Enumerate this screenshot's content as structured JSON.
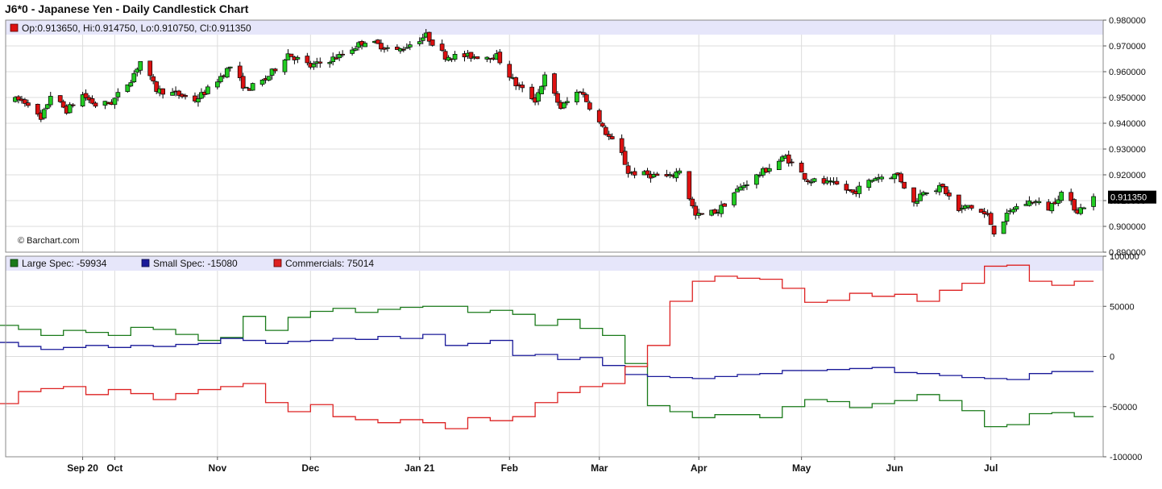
{
  "title": "J6*0 - Japanese Yen - Daily Candlestick Chart",
  "ohlc_legend": {
    "label": "Op:0.913650, Hi:0.914750, Lo:0.910750, Cl:0.911350",
    "color": "#dd1111"
  },
  "credit": "© Barchart.com",
  "last_price_label": "0.911350",
  "colors": {
    "up": "#22cc22",
    "down": "#dd1111",
    "legend_band": "#e6e6fa",
    "large_spec": "#1a7a1a",
    "small_spec": "#1a1a99",
    "commercials": "#dd2222"
  },
  "chart_data": [
    {
      "type": "candlestick",
      "title": "J6*0 - Japanese Yen - Daily Candlestick Chart",
      "ylim": [
        0.89,
        0.98
      ],
      "y_ticks": [
        "0.980000",
        "0.970000",
        "0.960000",
        "0.950000",
        "0.940000",
        "0.930000",
        "0.920000",
        "0.910000",
        "0.900000",
        "0.890000"
      ],
      "x_ticks": [
        "Sep 20",
        "Oct",
        "Nov",
        "Dec",
        "Jan 21",
        "Feb",
        "Mar",
        "Apr",
        "May",
        "Jun",
        "Jul"
      ],
      "control_points": [
        {
          "d": "2020-09-01",
          "p": 0.949
        },
        {
          "d": "2020-09-04",
          "p": 0.948
        },
        {
          "d": "2020-09-08",
          "p": 0.941
        },
        {
          "d": "2020-09-11",
          "p": 0.951
        },
        {
          "d": "2020-09-16",
          "p": 0.945
        },
        {
          "d": "2020-09-21",
          "p": 0.951
        },
        {
          "d": "2020-09-25",
          "p": 0.947
        },
        {
          "d": "2020-09-30",
          "p": 0.948
        },
        {
          "d": "2020-10-06",
          "p": 0.957
        },
        {
          "d": "2020-10-09",
          "p": 0.964
        },
        {
          "d": "2020-10-14",
          "p": 0.953
        },
        {
          "d": "2020-10-21",
          "p": 0.951
        },
        {
          "d": "2020-10-26",
          "p": 0.949
        },
        {
          "d": "2020-10-30",
          "p": 0.953
        },
        {
          "d": "2020-11-06",
          "p": 0.962
        },
        {
          "d": "2020-11-11",
          "p": 0.953
        },
        {
          "d": "2020-11-17",
          "p": 0.957
        },
        {
          "d": "2020-11-24",
          "p": 0.967
        },
        {
          "d": "2020-12-01",
          "p": 0.962
        },
        {
          "d": "2020-12-10",
          "p": 0.966
        },
        {
          "d": "2020-12-18",
          "p": 0.972
        },
        {
          "d": "2020-12-28",
          "p": 0.968
        },
        {
          "d": "2021-01-06",
          "p": 0.974
        },
        {
          "d": "2021-01-12",
          "p": 0.966
        },
        {
          "d": "2021-01-20",
          "p": 0.966
        },
        {
          "d": "2021-01-28",
          "p": 0.966
        },
        {
          "d": "2021-02-03",
          "p": 0.955
        },
        {
          "d": "2021-02-09",
          "p": 0.949
        },
        {
          "d": "2021-02-12",
          "p": 0.958
        },
        {
          "d": "2021-02-17",
          "p": 0.946
        },
        {
          "d": "2021-02-23",
          "p": 0.953
        },
        {
          "d": "2021-03-02",
          "p": 0.938
        },
        {
          "d": "2021-03-08",
          "p": 0.928
        },
        {
          "d": "2021-03-10",
          "p": 0.921
        },
        {
          "d": "2021-03-16",
          "p": 0.92
        },
        {
          "d": "2021-03-23",
          "p": 0.919
        },
        {
          "d": "2021-03-26",
          "p": 0.922
        },
        {
          "d": "2021-03-31",
          "p": 0.904
        },
        {
          "d": "2021-04-07",
          "p": 0.906
        },
        {
          "d": "2021-04-12",
          "p": 0.913
        },
        {
          "d": "2021-04-16",
          "p": 0.917
        },
        {
          "d": "2021-04-22",
          "p": 0.922
        },
        {
          "d": "2021-04-28",
          "p": 0.927
        },
        {
          "d": "2021-05-05",
          "p": 0.918
        },
        {
          "d": "2021-05-10",
          "p": 0.917
        },
        {
          "d": "2021-05-14",
          "p": 0.916
        },
        {
          "d": "2021-05-19",
          "p": 0.913
        },
        {
          "d": "2021-05-26",
          "p": 0.919
        },
        {
          "d": "2021-06-02",
          "p": 0.92
        },
        {
          "d": "2021-06-07",
          "p": 0.909
        },
        {
          "d": "2021-06-10",
          "p": 0.914
        },
        {
          "d": "2021-06-16",
          "p": 0.915
        },
        {
          "d": "2021-06-21",
          "p": 0.906
        },
        {
          "d": "2021-06-24",
          "p": 0.908
        },
        {
          "d": "2021-06-30",
          "p": 0.904
        },
        {
          "d": "2021-07-02",
          "p": 0.898
        },
        {
          "d": "2021-07-08",
          "p": 0.907
        },
        {
          "d": "2021-07-14",
          "p": 0.91
        },
        {
          "d": "2021-07-19",
          "p": 0.907
        },
        {
          "d": "2021-07-23",
          "p": 0.913
        },
        {
          "d": "2021-07-28",
          "p": 0.906
        },
        {
          "d": "2021-08-02",
          "p": 0.911
        }
      ]
    },
    {
      "type": "line",
      "step": true,
      "ylim": [
        -100000,
        100000
      ],
      "y_ticks": [
        "100000",
        "50000",
        "0",
        "-50000",
        "-100000"
      ],
      "series": [
        {
          "name": "Large Spec",
          "legend": "Large Spec: -59934",
          "values": [
            {
              "d": "2020-08-25",
              "v": 31000
            },
            {
              "d": "2020-09-01",
              "v": 27000
            },
            {
              "d": "2020-09-08",
              "v": 21000
            },
            {
              "d": "2020-09-15",
              "v": 26000
            },
            {
              "d": "2020-09-22",
              "v": 24000
            },
            {
              "d": "2020-09-29",
              "v": 21000
            },
            {
              "d": "2020-10-06",
              "v": 29000
            },
            {
              "d": "2020-10-13",
              "v": 27000
            },
            {
              "d": "2020-10-20",
              "v": 22000
            },
            {
              "d": "2020-10-27",
              "v": 16000
            },
            {
              "d": "2020-11-03",
              "v": 19000
            },
            {
              "d": "2020-11-10",
              "v": 40000
            },
            {
              "d": "2020-11-17",
              "v": 26000
            },
            {
              "d": "2020-11-24",
              "v": 39000
            },
            {
              "d": "2020-12-01",
              "v": 45000
            },
            {
              "d": "2020-12-08",
              "v": 48000
            },
            {
              "d": "2020-12-15",
              "v": 44000
            },
            {
              "d": "2020-12-22",
              "v": 47000
            },
            {
              "d": "2020-12-29",
              "v": 49000
            },
            {
              "d": "2021-01-05",
              "v": 50000
            },
            {
              "d": "2021-01-12",
              "v": 50000
            },
            {
              "d": "2021-01-19",
              "v": 44000
            },
            {
              "d": "2021-01-26",
              "v": 46000
            },
            {
              "d": "2021-02-02",
              "v": 42000
            },
            {
              "d": "2021-02-09",
              "v": 31000
            },
            {
              "d": "2021-02-16",
              "v": 37000
            },
            {
              "d": "2021-02-23",
              "v": 28000
            },
            {
              "d": "2021-03-02",
              "v": 21000
            },
            {
              "d": "2021-03-09",
              "v": -7000
            },
            {
              "d": "2021-03-16",
              "v": -49000
            },
            {
              "d": "2021-03-23",
              "v": -55000
            },
            {
              "d": "2021-03-30",
              "v": -61000
            },
            {
              "d": "2021-04-06",
              "v": -58000
            },
            {
              "d": "2021-04-13",
              "v": -58000
            },
            {
              "d": "2021-04-20",
              "v": -61000
            },
            {
              "d": "2021-04-27",
              "v": -50000
            },
            {
              "d": "2021-05-04",
              "v": -43000
            },
            {
              "d": "2021-05-11",
              "v": -45000
            },
            {
              "d": "2021-05-18",
              "v": -51000
            },
            {
              "d": "2021-05-25",
              "v": -47000
            },
            {
              "d": "2021-06-01",
              "v": -44000
            },
            {
              "d": "2021-06-08",
              "v": -38000
            },
            {
              "d": "2021-06-15",
              "v": -44000
            },
            {
              "d": "2021-06-22",
              "v": -54000
            },
            {
              "d": "2021-06-29",
              "v": -70000
            },
            {
              "d": "2021-07-06",
              "v": -68000
            },
            {
              "d": "2021-07-13",
              "v": -57000
            },
            {
              "d": "2021-07-20",
              "v": -56000
            },
            {
              "d": "2021-07-27",
              "v": -60000
            }
          ]
        },
        {
          "name": "Small Spec",
          "legend": "Small Spec: -15080",
          "values": [
            {
              "d": "2020-08-25",
              "v": 14000
            },
            {
              "d": "2020-09-01",
              "v": 10000
            },
            {
              "d": "2020-09-08",
              "v": 7000
            },
            {
              "d": "2020-09-15",
              "v": 9000
            },
            {
              "d": "2020-09-22",
              "v": 11000
            },
            {
              "d": "2020-09-29",
              "v": 9000
            },
            {
              "d": "2020-10-06",
              "v": 11000
            },
            {
              "d": "2020-10-13",
              "v": 10000
            },
            {
              "d": "2020-10-20",
              "v": 12000
            },
            {
              "d": "2020-10-27",
              "v": 13000
            },
            {
              "d": "2020-11-03",
              "v": 18000
            },
            {
              "d": "2020-11-10",
              "v": 16000
            },
            {
              "d": "2020-11-17",
              "v": 13000
            },
            {
              "d": "2020-11-24",
              "v": 15000
            },
            {
              "d": "2020-12-01",
              "v": 16000
            },
            {
              "d": "2020-12-08",
              "v": 18000
            },
            {
              "d": "2020-12-15",
              "v": 17000
            },
            {
              "d": "2020-12-22",
              "v": 20000
            },
            {
              "d": "2020-12-29",
              "v": 18000
            },
            {
              "d": "2021-01-05",
              "v": 22000
            },
            {
              "d": "2021-01-12",
              "v": 11000
            },
            {
              "d": "2021-01-19",
              "v": 13000
            },
            {
              "d": "2021-01-26",
              "v": 16000
            },
            {
              "d": "2021-02-02",
              "v": 1000
            },
            {
              "d": "2021-02-09",
              "v": 2000
            },
            {
              "d": "2021-02-16",
              "v": -3000
            },
            {
              "d": "2021-02-23",
              "v": -1000
            },
            {
              "d": "2021-03-02",
              "v": -9000
            },
            {
              "d": "2021-03-09",
              "v": -18000
            },
            {
              "d": "2021-03-16",
              "v": -20000
            },
            {
              "d": "2021-03-23",
              "v": -21000
            },
            {
              "d": "2021-03-30",
              "v": -22000
            },
            {
              "d": "2021-04-06",
              "v": -20000
            },
            {
              "d": "2021-04-13",
              "v": -18000
            },
            {
              "d": "2021-04-20",
              "v": -17000
            },
            {
              "d": "2021-04-27",
              "v": -14000
            },
            {
              "d": "2021-05-04",
              "v": -14000
            },
            {
              "d": "2021-05-11",
              "v": -13000
            },
            {
              "d": "2021-05-18",
              "v": -12000
            },
            {
              "d": "2021-05-25",
              "v": -11000
            },
            {
              "d": "2021-06-01",
              "v": -16000
            },
            {
              "d": "2021-06-08",
              "v": -17000
            },
            {
              "d": "2021-06-15",
              "v": -19000
            },
            {
              "d": "2021-06-22",
              "v": -21000
            },
            {
              "d": "2021-06-29",
              "v": -22000
            },
            {
              "d": "2021-07-06",
              "v": -23000
            },
            {
              "d": "2021-07-13",
              "v": -17000
            },
            {
              "d": "2021-07-20",
              "v": -15000
            },
            {
              "d": "2021-07-27",
              "v": -15000
            }
          ]
        },
        {
          "name": "Commercials",
          "legend": "Commercials: 75014",
          "values": [
            {
              "d": "2020-08-25",
              "v": -47000
            },
            {
              "d": "2020-09-01",
              "v": -35000
            },
            {
              "d": "2020-09-08",
              "v": -32000
            },
            {
              "d": "2020-09-15",
              "v": -30000
            },
            {
              "d": "2020-09-22",
              "v": -38000
            },
            {
              "d": "2020-09-29",
              "v": -33000
            },
            {
              "d": "2020-10-06",
              "v": -37000
            },
            {
              "d": "2020-10-13",
              "v": -43000
            },
            {
              "d": "2020-10-20",
              "v": -37000
            },
            {
              "d": "2020-10-27",
              "v": -33000
            },
            {
              "d": "2020-11-03",
              "v": -30000
            },
            {
              "d": "2020-11-10",
              "v": -27000
            },
            {
              "d": "2020-11-17",
              "v": -46000
            },
            {
              "d": "2020-11-24",
              "v": -55000
            },
            {
              "d": "2020-12-01",
              "v": -48000
            },
            {
              "d": "2020-12-08",
              "v": -60000
            },
            {
              "d": "2020-12-15",
              "v": -63000
            },
            {
              "d": "2020-12-22",
              "v": -66000
            },
            {
              "d": "2020-12-29",
              "v": -63000
            },
            {
              "d": "2021-01-05",
              "v": -66000
            },
            {
              "d": "2021-01-12",
              "v": -72000
            },
            {
              "d": "2021-01-19",
              "v": -61000
            },
            {
              "d": "2021-01-26",
              "v": -64000
            },
            {
              "d": "2021-02-02",
              "v": -60000
            },
            {
              "d": "2021-02-09",
              "v": -46000
            },
            {
              "d": "2021-02-16",
              "v": -36000
            },
            {
              "d": "2021-02-23",
              "v": -30000
            },
            {
              "d": "2021-03-02",
              "v": -27000
            },
            {
              "d": "2021-03-09",
              "v": -10000
            },
            {
              "d": "2021-03-16",
              "v": 11000
            },
            {
              "d": "2021-03-23",
              "v": 55000
            },
            {
              "d": "2021-03-30",
              "v": 75000
            },
            {
              "d": "2021-04-06",
              "v": 80000
            },
            {
              "d": "2021-04-13",
              "v": 78000
            },
            {
              "d": "2021-04-20",
              "v": 77000
            },
            {
              "d": "2021-04-27",
              "v": 68000
            },
            {
              "d": "2021-05-04",
              "v": 54000
            },
            {
              "d": "2021-05-11",
              "v": 56000
            },
            {
              "d": "2021-05-18",
              "v": 63000
            },
            {
              "d": "2021-05-25",
              "v": 60000
            },
            {
              "d": "2021-06-01",
              "v": 62000
            },
            {
              "d": "2021-06-08",
              "v": 55000
            },
            {
              "d": "2021-06-15",
              "v": 66000
            },
            {
              "d": "2021-06-22",
              "v": 73000
            },
            {
              "d": "2021-06-29",
              "v": 90000
            },
            {
              "d": "2021-07-06",
              "v": 91000
            },
            {
              "d": "2021-07-13",
              "v": 75000
            },
            {
              "d": "2021-07-20",
              "v": 71000
            },
            {
              "d": "2021-07-27",
              "v": 75000
            }
          ]
        }
      ]
    }
  ]
}
